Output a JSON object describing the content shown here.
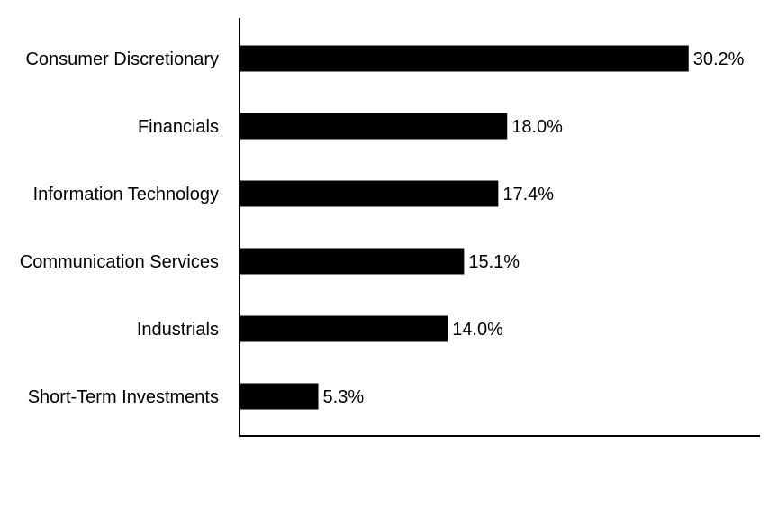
{
  "chart_data": {
    "type": "bar",
    "orientation": "horizontal",
    "categories": [
      "Consumer Discretionary",
      "Financials",
      "Information Technology",
      "Communication Services",
      "Industrials",
      "Short-Term Investments"
    ],
    "values": [
      30.2,
      18.0,
      17.4,
      15.1,
      14.0,
      5.3
    ],
    "data_labels": [
      "30.2%",
      "18.0%",
      "17.4%",
      "15.1%",
      "14.0%",
      "5.3%"
    ],
    "xlim": [
      0,
      35
    ],
    "grid": false,
    "legend": "none",
    "bar_color": "#000000"
  }
}
